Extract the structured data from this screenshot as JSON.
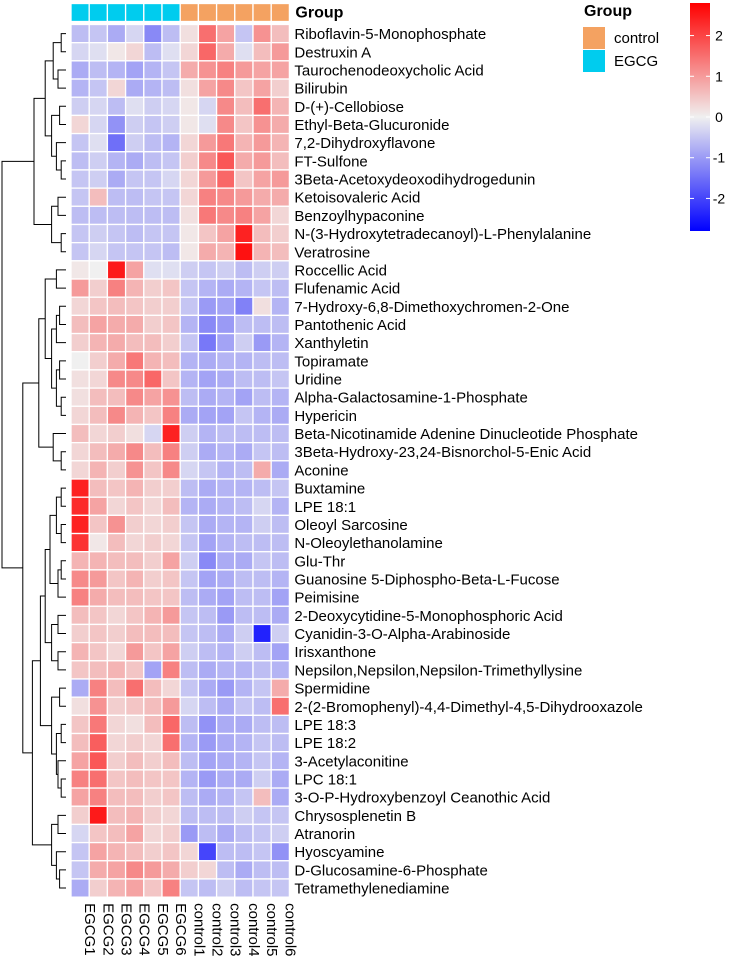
{
  "chart_data": {
    "type": "heatmap",
    "title": "",
    "annotation_title": "Group",
    "legend_title": "Group",
    "groups": [
      {
        "name": "control",
        "color": "#F4A261"
      },
      {
        "name": "EGCG",
        "color": "#00CCEE"
      }
    ],
    "columns": [
      "EGCG1",
      "EGCG2",
      "EGCG3",
      "EGCG4",
      "EGCG5",
      "EGCG6",
      "control1",
      "control2",
      "control3",
      "control4",
      "control5",
      "control6"
    ],
    "column_groups": [
      "EGCG",
      "EGCG",
      "EGCG",
      "EGCG",
      "EGCG",
      "EGCG",
      "control",
      "control",
      "control",
      "control",
      "control",
      "control"
    ],
    "rows": [
      "Riboflavin-5-Monophosphate",
      "Destruxin A",
      "Taurochenodeoxycholic Acid",
      "Bilirubin",
      "D-(+)-Cellobiose",
      "Ethyl-Beta-Glucuronide",
      "7,2-Dihydroxyflavone",
      "FT-Sulfone",
      "3Beta-Acetoxydeoxodihydrogedunin",
      "Ketoisovaleric Acid",
      "Benzoylhypaconine",
      "N-(3-Hydroxytetradecanoyl)-L-Phenylalanine",
      "Veratrosine",
      "Roccellic Acid",
      "Flufenamic Acid",
      "7-Hydroxy-6,8-Dimethoxychromen-2-One",
      "Pantothenic Acid",
      "Xanthyletin",
      "Topiramate",
      "Uridine",
      "Alpha-Galactosamine-1-Phosphate",
      "Hypericin",
      "Beta-Nicotinamide Adenine Dinucleotide Phosphate",
      "3Beta-Hydroxy-23,24-Bisnorchol-5-Enic Acid",
      "Aconine",
      "Buxtamine",
      "LPE 18:1",
      "Oleoyl Sarcosine",
      "N-Oleoylethanolamine",
      "Glu-Thr",
      "Guanosine 5-Diphospho-Beta-L-Fucose",
      "Peimisine",
      "2-Deoxycytidine-5-Monophosphoric Acid",
      "Cyanidin-3-O-Alpha-Arabinoside",
      "Irisxanthone",
      "Nepsilon,Nepsilon,Nepsilon-Trimethyllysine",
      "Spermidine",
      "2-(2-Bromophenyl)-4,4-Dimethyl-4,5-Dihydrooxazole",
      "LPE 18:3",
      "LPE 18:2",
      "3-Acetylaconitine",
      "LPC 18:1",
      "3-O-P-Hydroxybenzoyl Ceanothic Acid",
      "Chrysosplenetin B",
      "Atranorin",
      "Hyoscyamine",
      "D-Glucosamine-6-Phosphate",
      "Tetramethylenediamine"
    ],
    "values": [
      [
        -0.6,
        -0.5,
        -0.8,
        -0.3,
        -1.2,
        -0.6,
        0.2,
        1.5,
        0.9,
        -0.5,
        1.1,
        0.6
      ],
      [
        -0.3,
        -0.2,
        0.1,
        0.3,
        -0.6,
        -0.2,
        0.3,
        1.6,
        0.8,
        -0.2,
        0.6,
        1.0
      ],
      [
        -0.8,
        -0.6,
        -0.7,
        -0.9,
        -0.7,
        -0.5,
        0.8,
        1.1,
        1.3,
        1.0,
        0.9,
        0.9
      ],
      [
        -0.7,
        -0.5,
        0.3,
        -0.8,
        -0.7,
        -0.6,
        0.2,
        0.9,
        1.2,
        0.5,
        0.9,
        0.4
      ],
      [
        -0.4,
        -0.3,
        -0.6,
        -0.2,
        -0.4,
        -0.3,
        0.1,
        -0.3,
        1.2,
        0.6,
        1.5,
        0.7
      ],
      [
        0.3,
        -0.3,
        -1.1,
        -0.4,
        -0.5,
        -0.4,
        0.1,
        -0.2,
        1.2,
        0.5,
        1.1,
        0.8
      ],
      [
        -0.5,
        -0.2,
        -1.5,
        -0.4,
        -0.6,
        -0.7,
        0.3,
        1.0,
        1.4,
        0.7,
        1.0,
        0.7
      ],
      [
        -0.6,
        -0.4,
        -0.7,
        -0.8,
        -0.6,
        -0.5,
        0.4,
        1.2,
        1.8,
        0.8,
        1.0,
        0.6
      ],
      [
        -0.5,
        -0.4,
        -0.8,
        -0.5,
        -0.5,
        -0.3,
        0.3,
        1.0,
        1.6,
        0.5,
        0.9,
        1.0
      ],
      [
        -0.5,
        0.6,
        -0.6,
        -0.6,
        -0.5,
        -0.5,
        0.3,
        1.3,
        1.2,
        1.0,
        0.8,
        0.8
      ],
      [
        -0.6,
        -0.6,
        -0.6,
        -0.6,
        -0.6,
        -0.6,
        0.2,
        1.4,
        1.2,
        1.3,
        0.9,
        0.3
      ],
      [
        -0.5,
        -0.4,
        -0.5,
        -0.6,
        -0.5,
        -0.5,
        0.1,
        0.5,
        0.9,
        2.4,
        0.6,
        0.4
      ],
      [
        -0.5,
        -0.3,
        -0.5,
        -0.5,
        -0.5,
        -0.6,
        0.1,
        0.8,
        0.7,
        2.6,
        0.7,
        0.6
      ],
      [
        0.1,
        0.0,
        2.5,
        0.9,
        -0.2,
        -0.2,
        -0.4,
        -0.5,
        -0.4,
        -0.6,
        -0.4,
        -0.4
      ],
      [
        1.0,
        0.4,
        1.3,
        0.7,
        0.4,
        0.5,
        -0.5,
        -0.7,
        -0.8,
        -0.7,
        -0.5,
        -0.6
      ],
      [
        0.3,
        0.5,
        0.6,
        0.5,
        0.4,
        0.4,
        -0.5,
        -1.0,
        -0.9,
        -1.3,
        0.2,
        -0.7
      ],
      [
        0.6,
        0.9,
        0.8,
        0.8,
        0.4,
        0.5,
        -0.7,
        -1.2,
        -1.0,
        -0.6,
        -0.6,
        -0.6
      ],
      [
        0.4,
        0.7,
        0.8,
        0.6,
        0.6,
        0.4,
        -0.5,
        -1.4,
        -0.9,
        -0.4,
        -1.0,
        -0.7
      ],
      [
        0.0,
        0.4,
        0.8,
        1.4,
        0.7,
        0.6,
        -0.7,
        -0.8,
        -0.7,
        -0.7,
        -0.6,
        -0.6
      ],
      [
        0.2,
        0.3,
        1.2,
        1.2,
        1.6,
        0.5,
        -0.7,
        -0.9,
        -0.8,
        -0.6,
        -0.6,
        -0.5
      ],
      [
        0.2,
        0.6,
        0.6,
        1.2,
        0.9,
        1.1,
        -0.6,
        -0.8,
        -0.7,
        -0.9,
        -0.6,
        -0.7
      ],
      [
        0.3,
        0.6,
        1.2,
        0.7,
        0.5,
        1.3,
        -0.8,
        -0.9,
        -0.9,
        -0.5,
        -0.7,
        -0.8
      ],
      [
        0.6,
        0.3,
        0.4,
        0.2,
        -0.3,
        2.4,
        -0.4,
        -0.7,
        -0.6,
        -0.6,
        -0.6,
        -0.6
      ],
      [
        0.3,
        0.6,
        0.8,
        1.2,
        0.6,
        1.3,
        -0.4,
        -0.8,
        -0.7,
        -0.8,
        -0.5,
        -0.6
      ],
      [
        0.3,
        0.7,
        0.4,
        1.1,
        0.5,
        1.2,
        -0.3,
        -0.5,
        -0.7,
        -0.6,
        0.8,
        -0.8
      ],
      [
        2.4,
        0.6,
        0.5,
        0.7,
        0.4,
        0.4,
        -0.6,
        -0.8,
        -0.7,
        -0.7,
        -0.6,
        -0.5
      ],
      [
        2.3,
        0.9,
        0.3,
        0.5,
        0.3,
        0.6,
        -0.7,
        -0.8,
        -0.7,
        -0.6,
        -0.3,
        -0.7
      ],
      [
        2.4,
        0.5,
        1.1,
        0.4,
        0.3,
        0.4,
        -0.5,
        -0.8,
        -0.7,
        -0.7,
        -0.4,
        -0.6
      ],
      [
        2.2,
        0.1,
        0.6,
        0.3,
        0.4,
        0.3,
        -0.5,
        -0.9,
        -0.7,
        -0.6,
        -0.6,
        -0.6
      ],
      [
        0.7,
        0.7,
        0.6,
        0.6,
        0.4,
        0.9,
        -0.4,
        -1.2,
        -0.8,
        -0.8,
        -0.5,
        -0.6
      ],
      [
        1.2,
        1.0,
        0.5,
        0.7,
        0.4,
        0.5,
        -0.5,
        -0.9,
        -0.8,
        -0.6,
        -0.6,
        -0.7
      ],
      [
        1.3,
        0.8,
        0.6,
        0.6,
        0.5,
        0.5,
        -0.6,
        -0.8,
        -0.9,
        -0.6,
        -0.6,
        -0.9
      ],
      [
        0.6,
        0.5,
        0.3,
        0.5,
        0.7,
        1.0,
        -0.5,
        -0.6,
        -1.0,
        -0.6,
        -0.6,
        -0.8
      ],
      [
        0.4,
        0.5,
        0.4,
        0.6,
        0.6,
        0.6,
        -0.5,
        -0.6,
        -0.8,
        -0.4,
        -2.4,
        -0.4
      ],
      [
        0.7,
        0.5,
        0.3,
        1.0,
        0.5,
        0.9,
        -0.4,
        -0.6,
        -0.7,
        -0.4,
        -0.6,
        -0.9
      ],
      [
        0.5,
        0.6,
        0.7,
        0.5,
        -0.9,
        1.3,
        -0.6,
        -0.8,
        -0.7,
        -0.7,
        -0.6,
        -0.7
      ],
      [
        -0.8,
        1.3,
        0.6,
        1.5,
        0.6,
        0.3,
        -0.5,
        -0.8,
        -1.0,
        -0.7,
        -0.5,
        0.8
      ],
      [
        0.2,
        1.1,
        0.4,
        0.5,
        0.6,
        1.0,
        -0.3,
        -0.6,
        -0.8,
        -0.5,
        -0.6,
        1.5
      ],
      [
        0.5,
        1.4,
        0.3,
        0.2,
        0.6,
        1.6,
        -0.6,
        -1.1,
        -0.8,
        -0.8,
        -0.6,
        -0.6
      ],
      [
        0.6,
        1.7,
        0.3,
        0.4,
        0.3,
        1.5,
        -0.7,
        -1.0,
        -0.8,
        -0.7,
        -0.5,
        -0.6
      ],
      [
        0.9,
        1.8,
        0.4,
        0.6,
        0.4,
        0.6,
        -0.6,
        -0.9,
        -0.8,
        -0.7,
        -0.5,
        -0.7
      ],
      [
        1.3,
        1.5,
        0.5,
        0.6,
        0.5,
        0.5,
        -0.7,
        -1.0,
        -0.8,
        -0.8,
        -0.4,
        -0.8
      ],
      [
        0.9,
        1.3,
        0.6,
        0.6,
        0.4,
        0.5,
        -0.6,
        -0.8,
        -0.7,
        -0.5,
        0.6,
        -0.8
      ],
      [
        0.4,
        2.5,
        0.6,
        0.7,
        0.4,
        0.3,
        -0.6,
        -0.6,
        -0.6,
        -0.4,
        -0.5,
        -0.5
      ],
      [
        -0.3,
        0.5,
        0.6,
        0.9,
        0.3,
        0.4,
        -1.0,
        -0.6,
        -0.8,
        -0.6,
        -0.5,
        -0.4
      ],
      [
        -0.5,
        0.9,
        0.7,
        0.6,
        0.4,
        0.5,
        0.3,
        -2.0,
        -0.6,
        -0.6,
        -0.5,
        -1.1
      ],
      [
        -0.5,
        0.8,
        0.9,
        1.2,
        1.0,
        0.8,
        0.4,
        0.3,
        -0.6,
        -0.8,
        -0.6,
        -0.6
      ],
      [
        -0.8,
        0.4,
        0.7,
        0.9,
        0.5,
        1.3,
        -0.5,
        -0.6,
        -0.4,
        -0.6,
        -0.5,
        -0.5
      ]
    ],
    "color_scale": {
      "min": -2.8,
      "max": 2.8,
      "low_color": "#0000FF",
      "mid_color": "#F0F0F0",
      "high_color": "#FF0000",
      "ticks": [
        2,
        1,
        0,
        -1,
        -2
      ]
    },
    "row_dendrogram": true
  }
}
